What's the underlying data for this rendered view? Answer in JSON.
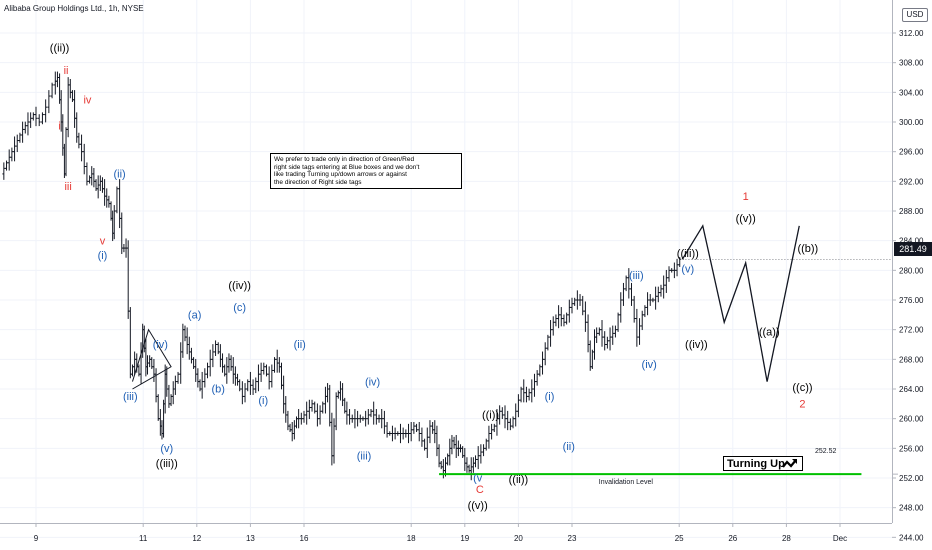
{
  "header": {
    "title": "Alibaba Group Holdings Ltd., 1h, NYSE"
  },
  "currency": "USD",
  "note_box": {
    "lines": [
      "We prefer to trade only in direction of Green/Red",
      "right side tags entering at Blue boxes and we don't",
      "like trading Turning up/down arrows or against",
      "the direction of Right side tags"
    ]
  },
  "turning_label": "Turning Up",
  "invalidation": {
    "label": "Invalidation Level",
    "value_label": "252.52",
    "value": 252.52,
    "color": "#00c000"
  },
  "current_price": {
    "label": "281.49",
    "value": 281.49
  },
  "colors": {
    "black": "#000000",
    "red": "#e53935",
    "blue": "#1f5fb4",
    "invalidation": "#00c000",
    "candle": "#131722"
  },
  "chart_data": {
    "type": "line",
    "ylim": [
      242,
      316
    ],
    "y_ticks": [
      244,
      248,
      252,
      256,
      260,
      264,
      268,
      272,
      276,
      280,
      284,
      288,
      292,
      296,
      300,
      304,
      308,
      312
    ],
    "y_tick_labels": [
      "244.00",
      "248.00",
      "252.00",
      "256.00",
      "260.00",
      "264.00",
      "268.00",
      "272.00",
      "276.00",
      "280.00",
      "284.00",
      "288.00",
      "292.00",
      "296.00",
      "300.00",
      "304.00",
      "308.00",
      "312.00"
    ],
    "x_ticks": [
      {
        "label": "9",
        "x": 0
      },
      {
        "label": "11",
        "x": 10
      },
      {
        "label": "12",
        "x": 15
      },
      {
        "label": "13",
        "x": 20
      },
      {
        "label": "16",
        "x": 25
      },
      {
        "label": "18",
        "x": 35
      },
      {
        "label": "19",
        "x": 40
      },
      {
        "label": "20",
        "x": 45
      },
      {
        "label": "23",
        "x": 50
      },
      {
        "label": "25",
        "x": 60
      },
      {
        "label": "26",
        "x": 65
      },
      {
        "label": "28",
        "x": 70
      },
      {
        "label": "Dec",
        "x": 75
      }
    ],
    "price_path": [
      [
        -3.0,
        293
      ],
      [
        -2.0,
        296
      ],
      [
        -1.0,
        299
      ],
      [
        0.0,
        301
      ],
      [
        0.6,
        300
      ],
      [
        1.2,
        302
      ],
      [
        1.8,
        305
      ],
      [
        2.2,
        306
      ],
      [
        2.5,
        300
      ],
      [
        2.8,
        293
      ],
      [
        3.2,
        305
      ],
      [
        3.6,
        303
      ],
      [
        4.0,
        298
      ],
      [
        4.5,
        296
      ],
      [
        5.0,
        292
      ],
      [
        5.4,
        293
      ],
      [
        5.8,
        291
      ],
      [
        6.2,
        292
      ],
      [
        6.6,
        290
      ],
      [
        7.0,
        289
      ],
      [
        7.3,
        285
      ],
      [
        7.8,
        291
      ],
      [
        8.2,
        283
      ],
      [
        8.6,
        283
      ],
      [
        9.0,
        266
      ],
      [
        9.4,
        268
      ],
      [
        9.8,
        266
      ],
      [
        10.1,
        272
      ],
      [
        10.4,
        267
      ],
      [
        10.8,
        268
      ],
      [
        11.2,
        266
      ],
      [
        11.6,
        260
      ],
      [
        11.9,
        258
      ],
      [
        12.2,
        266
      ],
      [
        12.6,
        262
      ],
      [
        13.0,
        264
      ],
      [
        13.5,
        266
      ],
      [
        13.9,
        272
      ],
      [
        14.3,
        270
      ],
      [
        14.7,
        268
      ],
      [
        15.1,
        266
      ],
      [
        15.5,
        264
      ],
      [
        16.0,
        266
      ],
      [
        16.5,
        268
      ],
      [
        17.0,
        270
      ],
      [
        17.4,
        268
      ],
      [
        17.8,
        266
      ],
      [
        18.2,
        268
      ],
      [
        18.6,
        266
      ],
      [
        19.0,
        265
      ],
      [
        19.5,
        263
      ],
      [
        20.0,
        265
      ],
      [
        20.5,
        264
      ],
      [
        21.0,
        266
      ],
      [
        21.5,
        267
      ],
      [
        22.0,
        265
      ],
      [
        22.5,
        268
      ],
      [
        22.9,
        267
      ],
      [
        23.3,
        262
      ],
      [
        23.7,
        259
      ],
      [
        24.1,
        258
      ],
      [
        24.5,
        260
      ],
      [
        25.0,
        260
      ],
      [
        25.5,
        261
      ],
      [
        26.0,
        262
      ],
      [
        26.5,
        260
      ],
      [
        27.0,
        262
      ],
      [
        27.4,
        264
      ],
      [
        27.8,
        255
      ],
      [
        28.2,
        263
      ],
      [
        28.6,
        264
      ],
      [
        29.0,
        261
      ],
      [
        29.5,
        260
      ],
      [
        30.0,
        260
      ],
      [
        30.5,
        260
      ],
      [
        31.0,
        260
      ],
      [
        31.5,
        261
      ],
      [
        32.0,
        260
      ],
      [
        32.5,
        260
      ],
      [
        33.0,
        258
      ],
      [
        33.5,
        258
      ],
      [
        34.0,
        258
      ],
      [
        34.5,
        258
      ],
      [
        35.0,
        258
      ],
      [
        35.5,
        259
      ],
      [
        36.0,
        258
      ],
      [
        36.5,
        256
      ],
      [
        37.0,
        259
      ],
      [
        37.4,
        258
      ],
      [
        37.8,
        254
      ],
      [
        38.2,
        253
      ],
      [
        38.6,
        255
      ],
      [
        39.0,
        257
      ],
      [
        39.4,
        256
      ],
      [
        39.8,
        256
      ],
      [
        40.2,
        254
      ],
      [
        40.6,
        253
      ],
      [
        41.0,
        254
      ],
      [
        41.5,
        255
      ],
      [
        42.0,
        256
      ],
      [
        42.5,
        258
      ],
      [
        43.0,
        259
      ],
      [
        43.5,
        261
      ],
      [
        44.0,
        260
      ],
      [
        44.5,
        259
      ],
      [
        45.0,
        261
      ],
      [
        45.5,
        264
      ],
      [
        46.0,
        263
      ],
      [
        46.5,
        264
      ],
      [
        47.0,
        266
      ],
      [
        47.5,
        268
      ],
      [
        48.0,
        271
      ],
      [
        48.5,
        273
      ],
      [
        49.0,
        274
      ],
      [
        49.5,
        273
      ],
      [
        50.0,
        275
      ],
      [
        50.5,
        276
      ],
      [
        51.0,
        276
      ],
      [
        51.5,
        273
      ],
      [
        51.9,
        267
      ],
      [
        52.3,
        271
      ],
      [
        52.8,
        272
      ],
      [
        53.3,
        270
      ],
      [
        53.8,
        271
      ],
      [
        54.3,
        272
      ],
      [
        54.8,
        276
      ],
      [
        55.3,
        279
      ],
      [
        55.8,
        276
      ],
      [
        56.3,
        271
      ],
      [
        56.8,
        274
      ],
      [
        57.3,
        276
      ],
      [
        57.8,
        276
      ],
      [
        58.3,
        277
      ],
      [
        58.8,
        278
      ],
      [
        59.3,
        280
      ],
      [
        59.8,
        280
      ],
      [
        60.3,
        281.5
      ]
    ],
    "projection": [
      [
        60.3,
        281.5
      ],
      [
        62.2,
        286
      ],
      [
        64.2,
        273
      ],
      [
        66.2,
        281
      ],
      [
        68.2,
        265
      ],
      [
        71.2,
        286
      ]
    ],
    "invalidation_range_x": [
      37.6,
      77.0
    ],
    "triangle": [
      [
        9.0,
        265
      ],
      [
        10.5,
        272
      ],
      [
        12.6,
        267
      ]
    ],
    "annotations": [
      {
        "text": "((ii))",
        "x": 2.2,
        "y": 309.5,
        "color": "black"
      },
      {
        "text": "ii",
        "x": 2.8,
        "y": 306.5,
        "color": "red"
      },
      {
        "text": "iv",
        "x": 4.8,
        "y": 302.5,
        "color": "red"
      },
      {
        "text": "i",
        "x": 2.2,
        "y": 299,
        "color": "red"
      },
      {
        "text": "iii",
        "x": 3.0,
        "y": 290.8,
        "color": "red"
      },
      {
        "text": "(ii)",
        "x": 7.8,
        "y": 292.5,
        "color": "blue"
      },
      {
        "text": "v",
        "x": 6.2,
        "y": 283.5,
        "color": "red"
      },
      {
        "text": "(i)",
        "x": 6.2,
        "y": 281.5,
        "color": "blue"
      },
      {
        "text": "(iii)",
        "x": 8.8,
        "y": 262.5,
        "color": "blue"
      },
      {
        "text": "(iv)",
        "x": 11.6,
        "y": 269.5,
        "color": "blue"
      },
      {
        "text": "(v)",
        "x": 12.2,
        "y": 255.5,
        "color": "blue"
      },
      {
        "text": "((iii))",
        "x": 12.2,
        "y": 253.5,
        "color": "black"
      },
      {
        "text": "(a)",
        "x": 14.8,
        "y": 273.5,
        "color": "blue"
      },
      {
        "text": "(b)",
        "x": 17.0,
        "y": 263.5,
        "color": "blue"
      },
      {
        "text": "((iv))",
        "x": 19.0,
        "y": 277.5,
        "color": "black"
      },
      {
        "text": "(c)",
        "x": 19.0,
        "y": 274.5,
        "color": "blue"
      },
      {
        "text": "(i)",
        "x": 21.2,
        "y": 262,
        "color": "blue"
      },
      {
        "text": "(ii)",
        "x": 24.6,
        "y": 269.5,
        "color": "blue"
      },
      {
        "text": "(iv)",
        "x": 31.4,
        "y": 264.5,
        "color": "blue"
      },
      {
        "text": "(iii)",
        "x": 30.6,
        "y": 254.5,
        "color": "blue"
      },
      {
        "text": "((i))",
        "x": 42.4,
        "y": 260,
        "color": "black"
      },
      {
        "text": "(v",
        "x": 41.2,
        "y": 251.5,
        "color": "blue"
      },
      {
        "text": "C",
        "x": 41.4,
        "y": 250,
        "color": "red"
      },
      {
        "text": "((v))",
        "x": 41.2,
        "y": 247.8,
        "color": "black"
      },
      {
        "text": "((ii))",
        "x": 45.0,
        "y": 251.3,
        "color": "black"
      },
      {
        "text": "(i)",
        "x": 47.9,
        "y": 262.5,
        "color": "blue"
      },
      {
        "text": "(ii)",
        "x": 49.7,
        "y": 255.8,
        "color": "blue"
      },
      {
        "text": "(iii)",
        "x": 56.0,
        "y": 278.8,
        "color": "blue"
      },
      {
        "text": "(iv)",
        "x": 57.2,
        "y": 266.8,
        "color": "blue"
      },
      {
        "text": "((iii))",
        "x": 60.8,
        "y": 281.8,
        "color": "black"
      },
      {
        "text": "(v)",
        "x": 60.8,
        "y": 279.7,
        "color": "blue"
      },
      {
        "text": "((iv))",
        "x": 61.6,
        "y": 269.5,
        "color": "black"
      },
      {
        "text": "1",
        "x": 66.2,
        "y": 289.5,
        "color": "red"
      },
      {
        "text": "((v))",
        "x": 66.2,
        "y": 286.5,
        "color": "black"
      },
      {
        "text": "((b))",
        "x": 72.0,
        "y": 282.5,
        "color": "black"
      },
      {
        "text": "((a))",
        "x": 68.4,
        "y": 271.2,
        "color": "black"
      },
      {
        "text": "((c))",
        "x": 71.5,
        "y": 263.7,
        "color": "black"
      },
      {
        "text": "2",
        "x": 71.5,
        "y": 261.5,
        "color": "red"
      }
    ]
  }
}
